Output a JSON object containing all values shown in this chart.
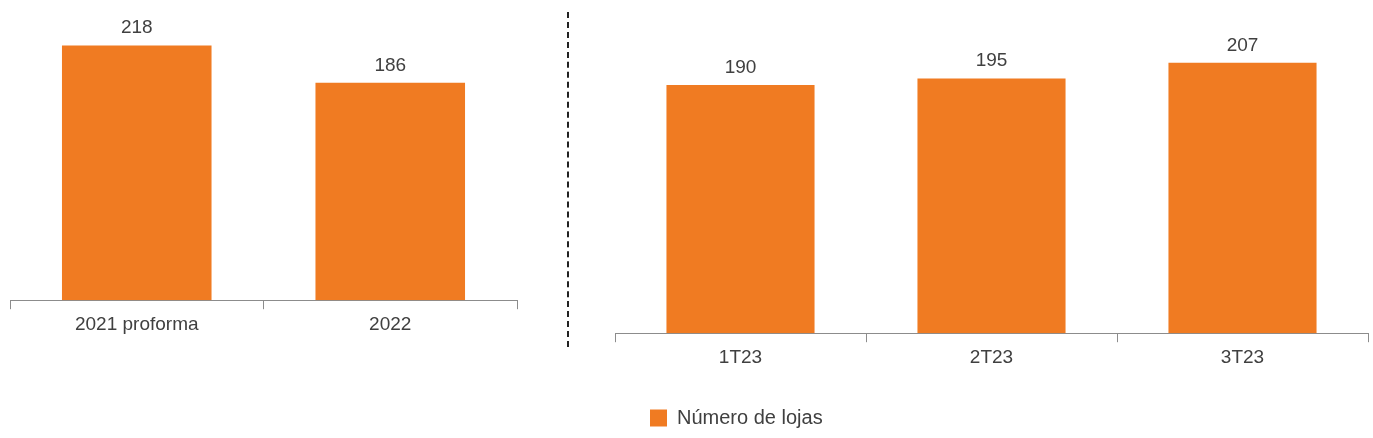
{
  "chart_data": [
    {
      "type": "bar",
      "categories": [
        "2021 proforma",
        "2022"
      ],
      "series": [
        {
          "color": "#f07b22",
          "values": [
            218,
            186
          ]
        }
      ],
      "data_labels": true,
      "legend": false
    },
    {
      "type": "bar",
      "categories": [
        "1T23",
        "2T23",
        "3T23"
      ],
      "series": [
        {
          "name": "Número de lojas",
          "color": "#f07b22",
          "values": [
            190,
            195,
            207
          ]
        }
      ],
      "data_labels": true,
      "legend": "bottom"
    }
  ]
}
